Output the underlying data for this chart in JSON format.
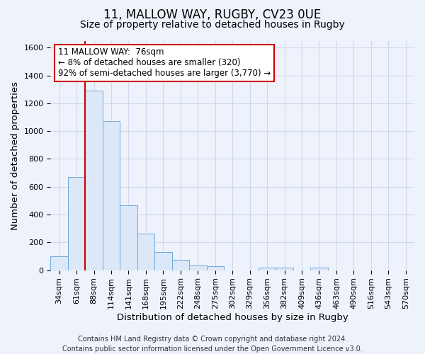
{
  "title": "11, MALLOW WAY, RUGBY, CV23 0UE",
  "subtitle": "Size of property relative to detached houses in Rugby",
  "xlabel": "Distribution of detached houses by size in Rugby",
  "ylabel": "Number of detached properties",
  "footer_line1": "Contains HM Land Registry data © Crown copyright and database right 2024.",
  "footer_line2": "Contains public sector information licensed under the Open Government Licence v3.0.",
  "categories": [
    "34sqm",
    "61sqm",
    "88sqm",
    "114sqm",
    "141sqm",
    "168sqm",
    "195sqm",
    "222sqm",
    "248sqm",
    "275sqm",
    "302sqm",
    "329sqm",
    "356sqm",
    "382sqm",
    "409sqm",
    "436sqm",
    "463sqm",
    "490sqm",
    "516sqm",
    "543sqm",
    "570sqm"
  ],
  "values": [
    100,
    670,
    1290,
    1070,
    465,
    265,
    130,
    75,
    35,
    30,
    0,
    0,
    20,
    20,
    0,
    20,
    0,
    0,
    0,
    0,
    0
  ],
  "bar_color_face": "#dce8f8",
  "bar_color_edge": "#6fa8dc",
  "vline_color": "#cc0000",
  "annotation_text": "11 MALLOW WAY:  76sqm\n← 8% of detached houses are smaller (320)\n92% of semi-detached houses are larger (3,770) →",
  "annotation_box_edgecolor": "#cc0000",
  "annotation_box_facecolor": "#ffffff",
  "ylim": [
    0,
    1650
  ],
  "yticks": [
    0,
    200,
    400,
    600,
    800,
    1000,
    1200,
    1400,
    1600
  ],
  "bg_color": "#eef2fb",
  "grid_color": "#d0d8ee",
  "title_fontsize": 12,
  "subtitle_fontsize": 10,
  "axis_label_fontsize": 9.5,
  "tick_fontsize": 8,
  "footer_fontsize": 7
}
